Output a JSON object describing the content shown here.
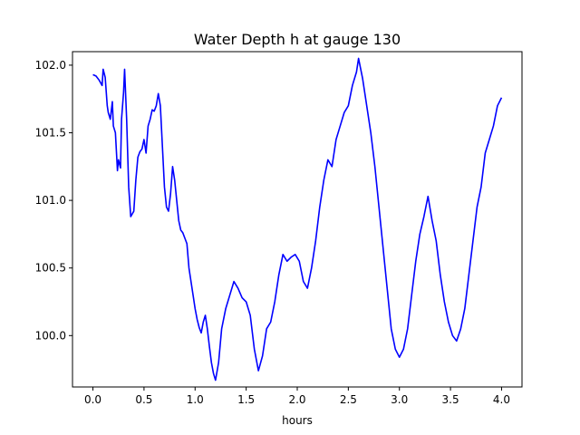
{
  "chart_data": {
    "type": "line",
    "title": "Water Depth h at gauge 130",
    "xlabel": "hours",
    "ylabel": "",
    "xlim": [
      -0.2,
      4.2
    ],
    "ylim": [
      99.62,
      102.1
    ],
    "xticks": [
      0.0,
      0.5,
      1.0,
      1.5,
      2.0,
      2.5,
      3.0,
      3.5,
      4.0
    ],
    "xtick_labels": [
      "0.0",
      "0.5",
      "1.0",
      "1.5",
      "2.0",
      "2.5",
      "3.0",
      "3.5",
      "4.0"
    ],
    "yticks": [
      100.0,
      100.5,
      101.0,
      101.5,
      102.0
    ],
    "ytick_labels": [
      "100.0",
      "100.5",
      "101.0",
      "101.5",
      "102.0"
    ],
    "grid": false,
    "series": [
      {
        "color": "#0000ff",
        "x": [
          0.0,
          0.03,
          0.06,
          0.09,
          0.1,
          0.12,
          0.14,
          0.15,
          0.17,
          0.19,
          0.2,
          0.22,
          0.24,
          0.25,
          0.27,
          0.28,
          0.3,
          0.31,
          0.33,
          0.35,
          0.37,
          0.4,
          0.42,
          0.44,
          0.46,
          0.48,
          0.5,
          0.52,
          0.54,
          0.56,
          0.58,
          0.6,
          0.62,
          0.64,
          0.66,
          0.68,
          0.7,
          0.72,
          0.74,
          0.76,
          0.78,
          0.8,
          0.82,
          0.84,
          0.86,
          0.88,
          0.9,
          0.92,
          0.94,
          0.96,
          0.98,
          1.0,
          1.02,
          1.04,
          1.06,
          1.08,
          1.1,
          1.12,
          1.14,
          1.16,
          1.18,
          1.2,
          1.23,
          1.26,
          1.3,
          1.34,
          1.38,
          1.42,
          1.46,
          1.5,
          1.54,
          1.58,
          1.62,
          1.66,
          1.7,
          1.74,
          1.78,
          1.82,
          1.86,
          1.9,
          1.94,
          1.98,
          2.02,
          2.06,
          2.1,
          2.14,
          2.18,
          2.22,
          2.26,
          2.3,
          2.34,
          2.38,
          2.42,
          2.46,
          2.5,
          2.54,
          2.58,
          2.6,
          2.64,
          2.68,
          2.72,
          2.76,
          2.8,
          2.84,
          2.88,
          2.92,
          2.96,
          3.0,
          3.04,
          3.08,
          3.12,
          3.16,
          3.2,
          3.24,
          3.28,
          3.32,
          3.36,
          3.4,
          3.44,
          3.48,
          3.52,
          3.56,
          3.6,
          3.64,
          3.68,
          3.72,
          3.76,
          3.8,
          3.84,
          3.88,
          3.92,
          3.96,
          4.0
        ],
        "y": [
          101.93,
          101.92,
          101.89,
          101.85,
          101.97,
          101.91,
          101.7,
          101.65,
          101.6,
          101.73,
          101.55,
          101.5,
          101.22,
          101.3,
          101.24,
          101.6,
          101.8,
          101.97,
          101.6,
          101.1,
          100.88,
          100.92,
          101.15,
          101.32,
          101.36,
          101.38,
          101.45,
          101.35,
          101.55,
          101.6,
          101.67,
          101.66,
          101.7,
          101.79,
          101.7,
          101.4,
          101.1,
          100.95,
          100.92,
          101.05,
          101.25,
          101.15,
          101.0,
          100.85,
          100.78,
          100.76,
          100.72,
          100.68,
          100.5,
          100.4,
          100.3,
          100.2,
          100.12,
          100.06,
          100.02,
          100.1,
          100.15,
          100.05,
          99.92,
          99.8,
          99.72,
          99.67,
          99.8,
          100.05,
          100.2,
          100.3,
          100.4,
          100.35,
          100.28,
          100.25,
          100.15,
          99.9,
          99.74,
          99.85,
          100.05,
          100.1,
          100.25,
          100.45,
          100.6,
          100.55,
          100.58,
          100.6,
          100.55,
          100.4,
          100.35,
          100.5,
          100.7,
          100.95,
          101.15,
          101.3,
          101.25,
          101.45,
          101.55,
          101.65,
          101.7,
          101.85,
          101.95,
          102.05,
          101.9,
          101.7,
          101.5,
          101.25,
          100.95,
          100.65,
          100.35,
          100.05,
          99.9,
          99.84,
          99.9,
          100.05,
          100.3,
          100.55,
          100.75,
          100.88,
          101.03,
          100.85,
          100.7,
          100.45,
          100.25,
          100.1,
          100.0,
          99.96,
          100.05,
          100.2,
          100.45,
          100.7,
          100.95,
          101.1,
          101.35,
          101.45,
          101.55,
          101.7,
          101.76
        ]
      }
    ]
  }
}
